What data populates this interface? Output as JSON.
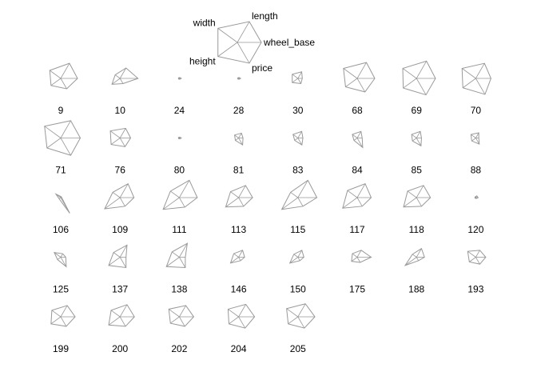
{
  "chart_data": {
    "type": "star",
    "variables": [
      "length",
      "wheel_base",
      "price",
      "height",
      "width"
    ],
    "key": {
      "variables": [
        "length",
        "wheel_base",
        "price",
        "height",
        "width"
      ]
    },
    "observations": [
      {
        "label": "9",
        "values": [
          0.87,
          0.84,
          0.6,
          0.6,
          0.68
        ]
      },
      {
        "label": "10",
        "values": [
          0.6,
          0.9,
          0.3,
          0.5,
          0.3
        ]
      },
      {
        "label": "24",
        "values": [
          0.05,
          0.1,
          0.05,
          0.05,
          0.05
        ]
      },
      {
        "label": "28",
        "values": [
          0.05,
          0.1,
          0.05,
          0.05,
          0.05
        ]
      },
      {
        "label": "30",
        "values": [
          0.38,
          0.22,
          0.3,
          0.35,
          0.35
        ]
      },
      {
        "label": "68",
        "values": [
          0.92,
          0.88,
          0.78,
          0.72,
          0.85
        ]
      },
      {
        "label": "69",
        "values": [
          1.0,
          0.95,
          0.95,
          0.82,
          0.85
        ]
      },
      {
        "label": "70",
        "values": [
          0.87,
          0.76,
          0.92,
          0.8,
          0.85
        ]
      },
      {
        "label": "71",
        "values": [
          1.0,
          0.98,
          1.0,
          0.85,
          1.0
        ]
      },
      {
        "label": "76",
        "values": [
          0.56,
          0.53,
          0.5,
          0.55,
          0.6
        ]
      },
      {
        "label": "80",
        "values": [
          0.05,
          0.1,
          0.05,
          0.05,
          0.05
        ]
      },
      {
        "label": "81",
        "values": [
          0.28,
          0.22,
          0.4,
          0.2,
          0.25
        ]
      },
      {
        "label": "83",
        "values": [
          0.38,
          0.25,
          0.4,
          0.2,
          0.3
        ]
      },
      {
        "label": "84",
        "values": [
          0.38,
          0.25,
          0.55,
          0.2,
          0.3
        ]
      },
      {
        "label": "85",
        "values": [
          0.38,
          0.25,
          0.45,
          0.25,
          0.3
        ]
      },
      {
        "label": "88",
        "values": [
          0.3,
          0.15,
          0.35,
          0.25,
          0.3
        ]
      },
      {
        "label": "106",
        "values": [
          0.05,
          0.05,
          0.9,
          0.1,
          0.3
        ]
      },
      {
        "label": "109",
        "values": [
          0.8,
          0.7,
          0.5,
          0.95,
          0.45
        ]
      },
      {
        "label": "111",
        "values": [
          1.0,
          0.9,
          0.55,
          1.0,
          0.55
        ]
      },
      {
        "label": "113",
        "values": [
          0.7,
          0.7,
          0.5,
          0.8,
          0.5
        ]
      },
      {
        "label": "115",
        "values": [
          1.0,
          0.95,
          0.5,
          1.0,
          0.45
        ]
      },
      {
        "label": "117",
        "values": [
          0.8,
          0.7,
          0.5,
          0.9,
          0.6
        ]
      },
      {
        "label": "118",
        "values": [
          0.7,
          0.7,
          0.5,
          0.8,
          0.55
        ]
      },
      {
        "label": "120",
        "values": [
          0.1,
          0.12,
          0.05,
          0.05,
          0.05
        ]
      },
      {
        "label": "125",
        "values": [
          0.2,
          0.25,
          0.55,
          0.2,
          0.4
        ]
      },
      {
        "label": "137",
        "values": [
          0.7,
          0.3,
          0.6,
          0.7,
          0.4
        ]
      },
      {
        "label": "138",
        "values": [
          0.8,
          0.3,
          0.6,
          0.8,
          0.45
        ]
      },
      {
        "label": "146",
        "values": [
          0.4,
          0.3,
          0.2,
          0.5,
          0.3
        ]
      },
      {
        "label": "150",
        "values": [
          0.4,
          0.3,
          0.2,
          0.5,
          0.25
        ]
      },
      {
        "label": "175",
        "values": [
          0.4,
          0.7,
          0.3,
          0.35,
          0.3
        ]
      },
      {
        "label": "188",
        "values": [
          0.5,
          0.4,
          0.2,
          0.7,
          0.25
        ]
      },
      {
        "label": "193",
        "values": [
          0.4,
          0.5,
          0.4,
          0.4,
          0.5
        ]
      },
      {
        "label": "199",
        "values": [
          0.65,
          0.72,
          0.55,
          0.6,
          0.55
        ]
      },
      {
        "label": "200",
        "values": [
          0.7,
          0.72,
          0.55,
          0.7,
          0.55
        ]
      },
      {
        "label": "202",
        "values": [
          0.65,
          0.72,
          0.55,
          0.55,
          0.65
        ]
      },
      {
        "label": "204",
        "values": [
          0.72,
          0.8,
          0.65,
          0.6,
          0.65
        ]
      },
      {
        "label": "205",
        "values": [
          0.75,
          0.85,
          0.65,
          0.6,
          0.7
        ]
      }
    ]
  }
}
